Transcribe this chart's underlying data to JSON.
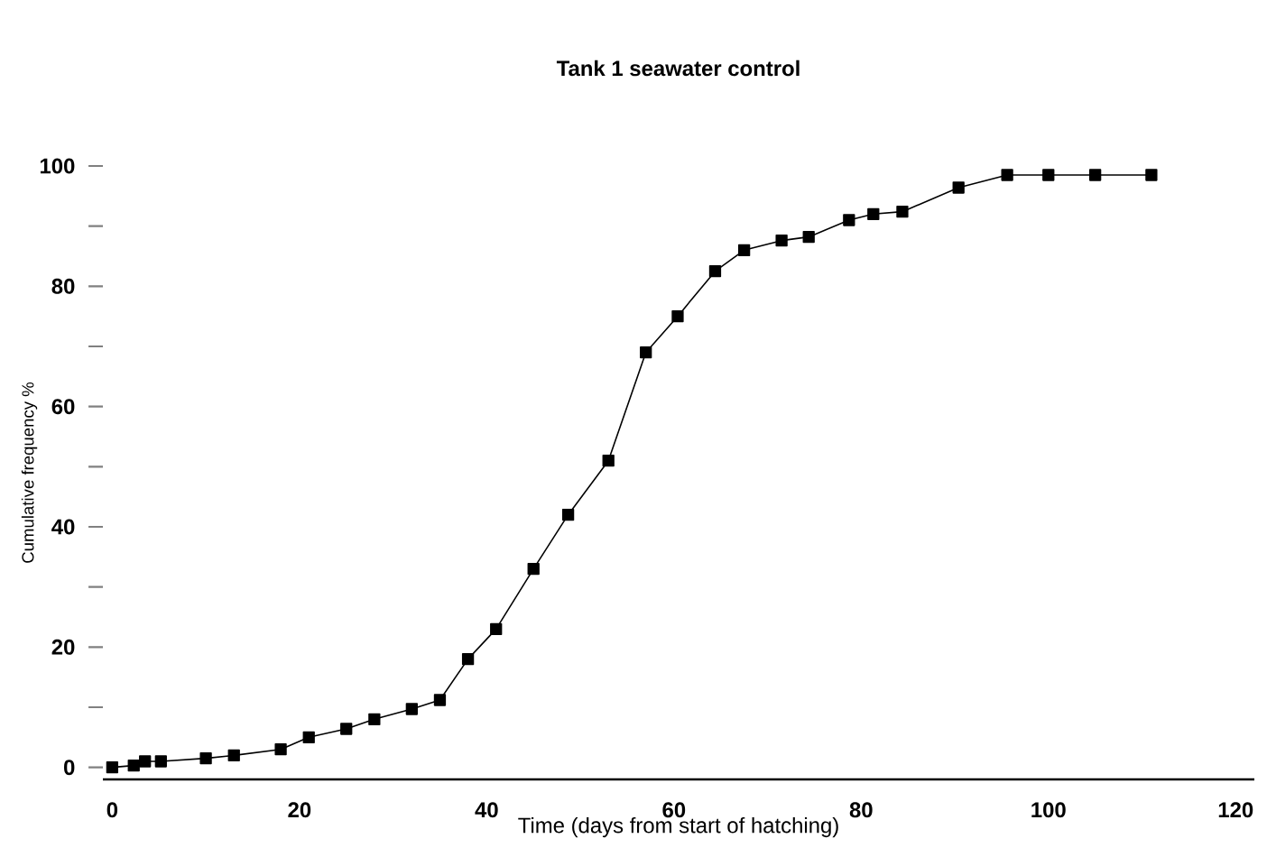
{
  "chart_data": {
    "type": "line",
    "title": "Tank 1 seawater control",
    "xlabel": "Time (days from start of hatching)",
    "ylabel": "Cumulative frequency %",
    "x": [
      0,
      2.3,
      3.5,
      5.2,
      10,
      13,
      18,
      21,
      25,
      28,
      32,
      35,
      38,
      41,
      45,
      48.7,
      53,
      57,
      60.4,
      64.4,
      67.5,
      71.5,
      74.4,
      78.7,
      81.3,
      84.4,
      90.4,
      95.6,
      100,
      105,
      111
    ],
    "series": [
      {
        "color": "#000000",
        "values": [
          0,
          0.3,
          1,
          1,
          1.5,
          2,
          3,
          5,
          6.4,
          8,
          9.7,
          11.2,
          18,
          23,
          33,
          42,
          51,
          69,
          75,
          82.5,
          86,
          87.6,
          88.2,
          91,
          92,
          92.4,
          96.4,
          98.5,
          98.5,
          98.5,
          98.5
        ]
      }
    ],
    "xlim": [
      -1,
      122
    ],
    "ylim": [
      -2,
      100
    ],
    "xticks": [
      0,
      20,
      40,
      60,
      80,
      100,
      120
    ],
    "yticks": [
      0,
      {
        "value": 10,
        "label": null
      },
      20,
      {
        "value": 30,
        "label": null
      },
      40,
      {
        "value": 50,
        "label": null
      },
      60,
      {
        "value": 70,
        "label": null
      },
      80,
      {
        "value": 90,
        "label": null
      },
      100
    ],
    "marker": "square",
    "line_style": "solid",
    "grid": false
  }
}
